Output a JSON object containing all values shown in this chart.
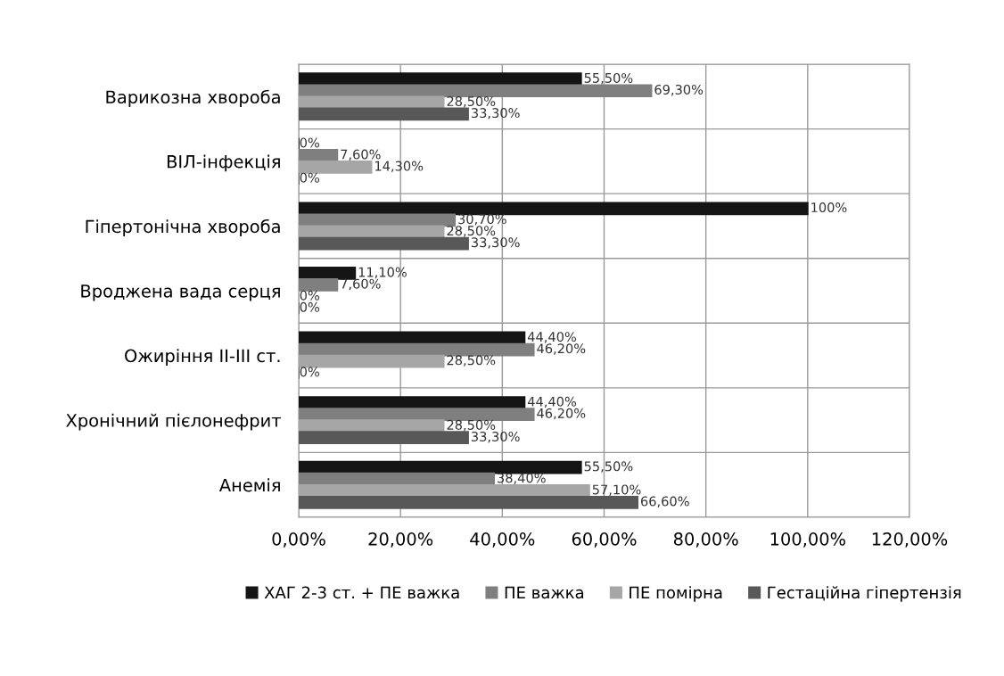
{
  "chart_data": {
    "type": "bar",
    "orientation": "horizontal",
    "categories": [
      "Варикозна хвороба",
      "ВІЛ-інфекція",
      "Гіпертонічна хвороба",
      "Вроджена вада серця",
      "Ожиріння ІІ-ІІІ ст.",
      "Хронічний пієлонефрит",
      "Анемія"
    ],
    "series": [
      {
        "name": "ХАГ 2-3 ст. + ПЕ важка",
        "color": "#141414",
        "values": [
          55.5,
          0,
          100,
          11.1,
          44.4,
          44.4,
          55.5
        ],
        "value_labels": [
          "55,50%",
          "0%",
          "100%",
          "11,10%",
          "44,40%",
          "44,40%",
          "55,50%"
        ]
      },
      {
        "name": "ПЕ важка",
        "color": "#7f7f7f",
        "values": [
          69.3,
          7.6,
          30.7,
          7.6,
          46.2,
          46.2,
          38.4
        ],
        "value_labels": [
          "69,30%",
          "7,60%",
          "30,70%",
          "7,60%",
          "46,20%",
          "46,20%",
          "38,40%"
        ]
      },
      {
        "name": "ПЕ помірна",
        "color": "#a6a6a6",
        "values": [
          28.5,
          14.3,
          28.5,
          0,
          28.5,
          28.5,
          57.1
        ],
        "value_labels": [
          "28,50%",
          "14,30%",
          "28,50%",
          "0%",
          "28,50%",
          "28,50%",
          "57,10%"
        ]
      },
      {
        "name": "Гестаційна гіпертензія",
        "color": "#585858",
        "values": [
          33.3,
          0,
          33.3,
          0,
          0,
          33.3,
          66.6
        ],
        "value_labels": [
          "33,30%",
          "0%",
          "33,30%",
          "0%",
          "0%",
          "33,30%",
          "66,60%"
        ]
      }
    ],
    "xlim": [
      0,
      120
    ],
    "xticks": [
      {
        "value": 0,
        "label": "0,00%"
      },
      {
        "value": 20,
        "label": "20,00%"
      },
      {
        "value": 40,
        "label": "40,00%"
      },
      {
        "value": 60,
        "label": "60,00%"
      },
      {
        "value": 80,
        "label": "80,00%"
      },
      {
        "value": 100,
        "label": "100,00%"
      },
      {
        "value": 120,
        "label": "120,00%"
      }
    ],
    "grid": true,
    "legend": "bottom"
  }
}
